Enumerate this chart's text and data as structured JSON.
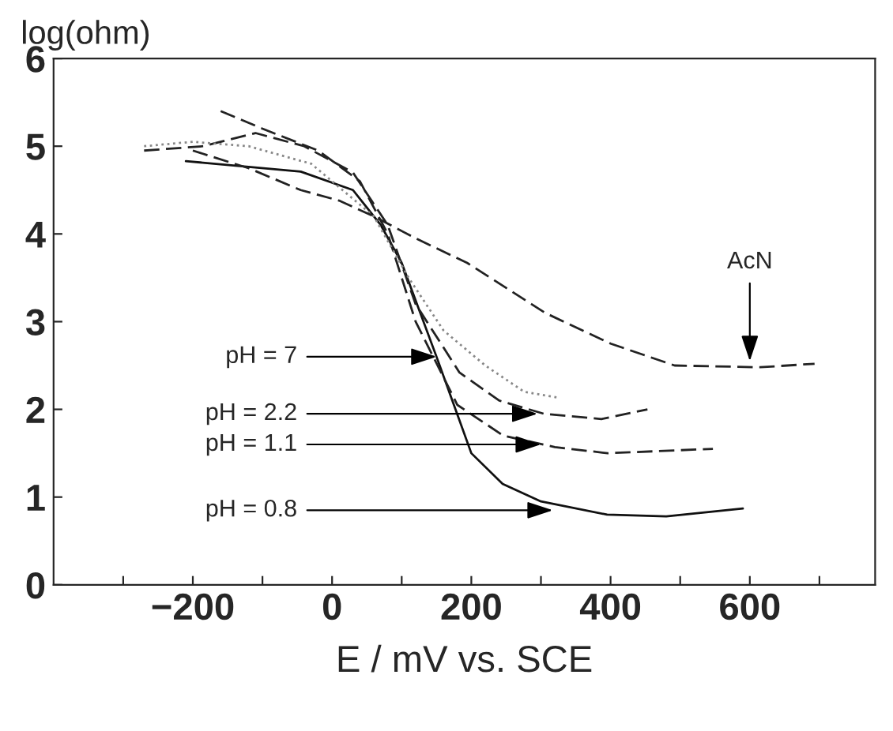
{
  "chart_data": {
    "type": "line",
    "xlabel": "E / mV vs. SCE",
    "ylabel": "log(ohm)",
    "xlim": [
      -400,
      780
    ],
    "ylim": [
      0,
      6
    ],
    "xticks": [
      {
        "value": -300,
        "label": null
      },
      -200,
      {
        "value": -100,
        "label": null
      },
      0,
      {
        "value": 100,
        "label": null
      },
      200,
      {
        "value": 300,
        "label": null
      },
      400,
      {
        "value": 500,
        "label": null
      },
      600,
      {
        "value": 700,
        "label": null
      }
    ],
    "yticks": [
      0,
      1,
      2,
      3,
      4,
      5,
      6
    ],
    "grid": false,
    "legend": false,
    "series": [
      {
        "color": "#111111",
        "line_style": "solid",
        "x": [
          -210,
          -45,
          30,
          70,
          100,
          150,
          200,
          245,
          300,
          395,
          480,
          590
        ],
        "values": [
          4.83,
          4.71,
          4.5,
          4.1,
          3.67,
          2.6,
          1.5,
          1.15,
          0.95,
          0.8,
          0.78,
          0.87
        ]
      },
      {
        "color": "#222222",
        "line_style": "dashed",
        "x": [
          -160,
          -100,
          -20,
          40,
          80,
          120,
          180,
          246,
          320,
          396,
          547
        ],
        "values": [
          5.4,
          5.2,
          4.95,
          4.6,
          4.0,
          3.0,
          2.05,
          1.7,
          1.57,
          1.5,
          1.55
        ]
      },
      {
        "color": "#222222",
        "line_style": "dashed",
        "x": [
          -270,
          -185,
          -110,
          -40,
          30,
          80,
          120,
          183,
          240,
          304,
          387,
          453
        ],
        "values": [
          4.95,
          5.0,
          5.15,
          5.0,
          4.7,
          4.1,
          3.2,
          2.42,
          2.1,
          1.95,
          1.89,
          2.0
        ]
      },
      {
        "color": "#888888",
        "line_style": "dotted",
        "x": [
          -270,
          -200,
          -120,
          -30,
          60,
          110,
          160,
          220,
          276,
          327
        ],
        "values": [
          5.0,
          5.05,
          5.0,
          4.8,
          4.2,
          3.5,
          2.9,
          2.5,
          2.2,
          2.13
        ]
      },
      {
        "color": "#222222",
        "line_style": "dashed",
        "x": [
          -200,
          -120,
          -45,
          10,
          60,
          120,
          194,
          306,
          400,
          492,
          615,
          693
        ],
        "values": [
          4.95,
          4.75,
          4.5,
          4.38,
          4.2,
          3.95,
          3.67,
          3.1,
          2.75,
          2.5,
          2.48,
          2.52
        ]
      }
    ],
    "annotations": [
      {
        "text": "pH = 7",
        "x": 150,
        "y": 2.6
      },
      {
        "text": "pH = 2.2",
        "x": 295,
        "y": 1.95
      },
      {
        "text": "pH = 1.1",
        "x": 300,
        "y": 1.6
      },
      {
        "text": "pH = 0.8",
        "x": 317,
        "y": 0.85
      },
      {
        "text": "AcN",
        "x": 600,
        "y": 2.55
      }
    ]
  }
}
